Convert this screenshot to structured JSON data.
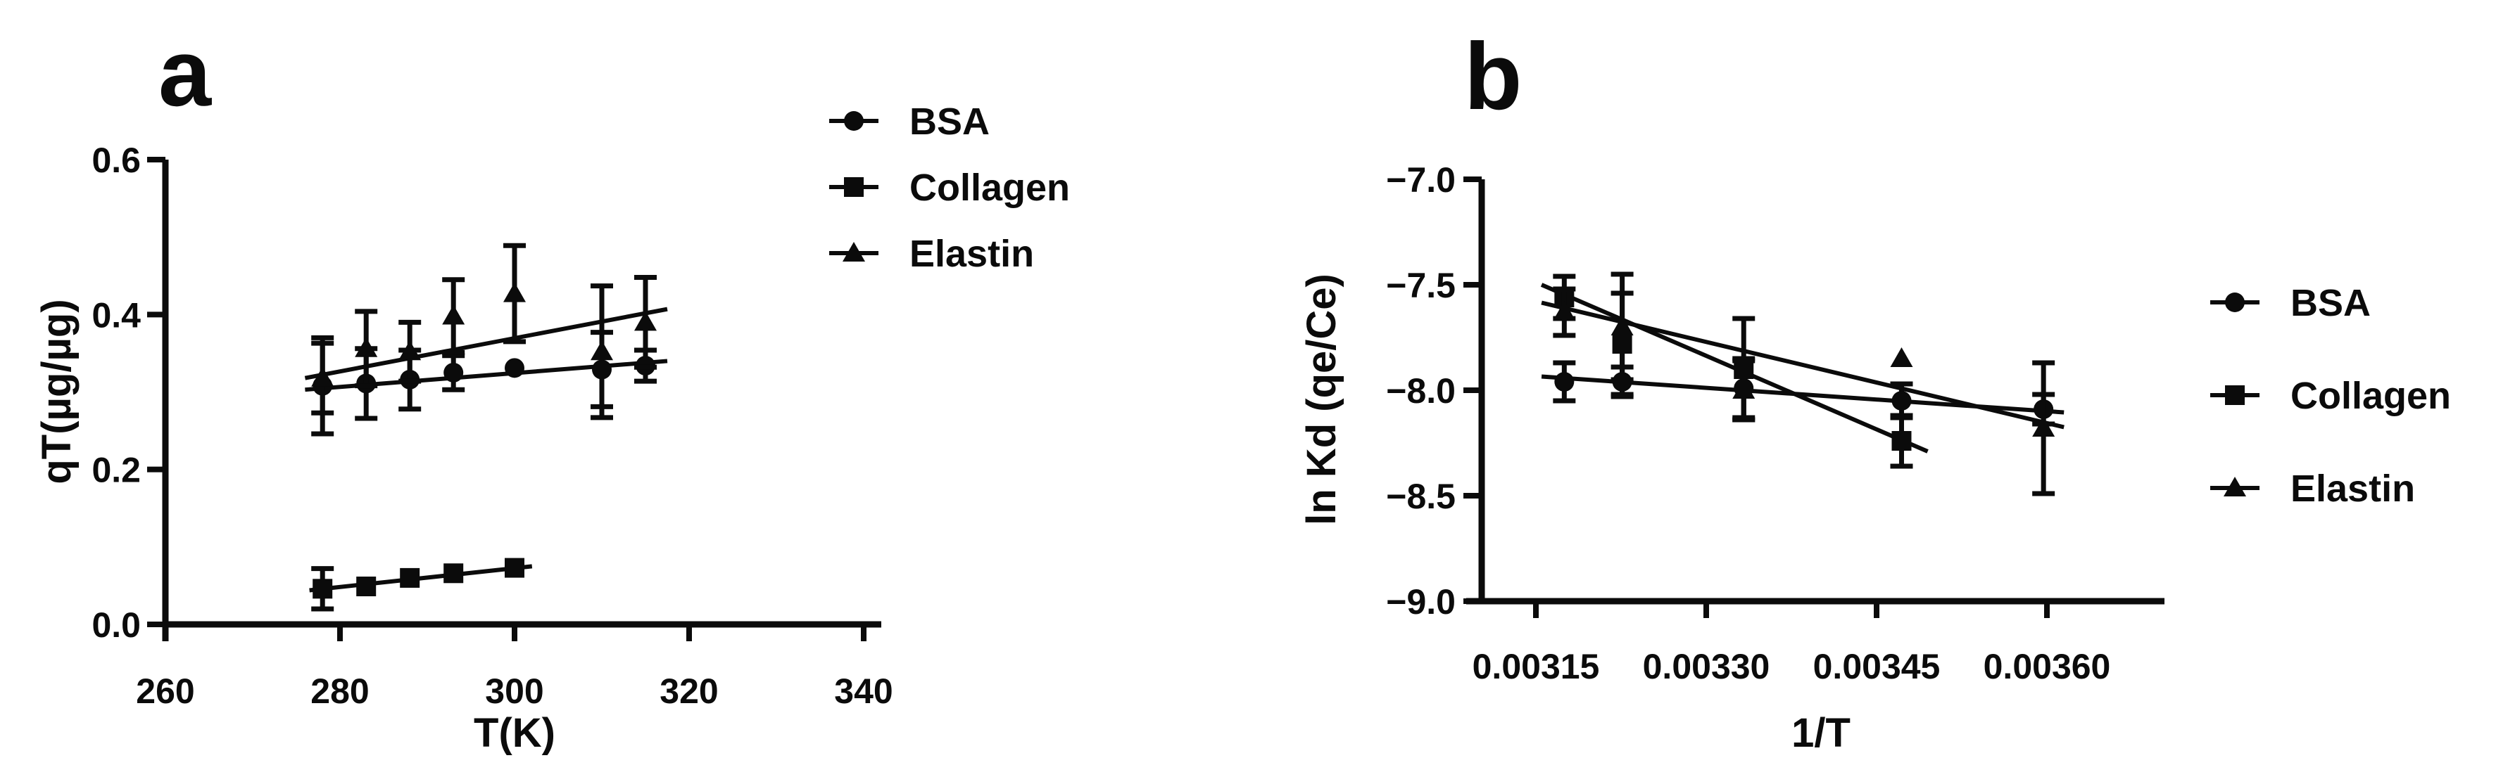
{
  "figure": {
    "background": "#ffffff",
    "ink": "#0b0b0b"
  },
  "legend": {
    "items": [
      {
        "label": "BSA",
        "marker": "circle"
      },
      {
        "label": "Collagen",
        "marker": "square"
      },
      {
        "label": "Elastin",
        "marker": "triangle"
      }
    ]
  },
  "chart_data": [
    {
      "id": "a",
      "panel_label": "a",
      "type": "scatter",
      "title": "",
      "xlabel": "T(K)",
      "ylabel": "qT(µg/µg)",
      "xlim": [
        260,
        342
      ],
      "ylim": [
        0.0,
        0.6
      ],
      "xticks": [
        260,
        280,
        300,
        320,
        340
      ],
      "xtick_labels": [
        "260",
        "280",
        "300",
        "320",
        "340"
      ],
      "yticks": [
        0.0,
        0.2,
        0.4,
        0.6
      ],
      "ytick_labels": [
        "0.0",
        "0.2",
        "0.4",
        "0.6"
      ],
      "grid": false,
      "legend_position": "right-top",
      "series": [
        {
          "name": "BSA",
          "marker": "circle",
          "x": [
            278,
            283,
            288,
            293,
            300,
            310,
            315
          ],
          "y": [
            0.308,
            0.311,
            0.316,
            0.325,
            0.331,
            0.329,
            0.334
          ],
          "yerr": [
            0.062,
            0.045,
            0.038,
            0.022,
            0,
            0.048,
            0.02
          ],
          "trend_line": {
            "x": [
              276,
              317.5
            ],
            "y": [
              0.303,
              0.34
            ]
          }
        },
        {
          "name": "Collagen",
          "marker": "square",
          "x": [
            278,
            283,
            288,
            293,
            300
          ],
          "y": [
            0.046,
            0.049,
            0.06,
            0.066,
            0.073
          ],
          "yerr": [
            0.026,
            0,
            0,
            0,
            0
          ],
          "trend_line": {
            "x": [
              276.5,
              302
            ],
            "y": [
              0.044,
              0.075
            ]
          }
        },
        {
          "name": "Elastin",
          "marker": "triangle",
          "x": [
            278,
            283,
            288,
            293,
            300,
            310,
            315
          ],
          "y": [
            0.318,
            0.356,
            0.352,
            0.398,
            0.427,
            0.352,
            0.39
          ],
          "yerr": [
            0.045,
            0.048,
            0.038,
            0.047,
            0.062,
            0.085,
            0.058
          ],
          "trend_line": {
            "x": [
              276,
              317.5
            ],
            "y": [
              0.318,
              0.407
            ]
          }
        }
      ]
    },
    {
      "id": "b",
      "panel_label": "b",
      "type": "scatter",
      "title": "",
      "xlabel": "1/T",
      "ylabel": "ln Kd (qe/Ce)",
      "xlim": [
        0.003095,
        0.003705
      ],
      "ylim": [
        -9.0,
        -7.0
      ],
      "xticks": [
        0.00315,
        0.0033,
        0.00345,
        0.0036
      ],
      "xtick_labels": [
        "0.00315",
        "0.00330",
        "0.00345",
        "0.00360"
      ],
      "yticks": [
        -7.0,
        -7.5,
        -8.0,
        -8.5,
        -9.0
      ],
      "ytick_labels": [
        "-7.0",
        "-7.5",
        "-8.0",
        "-8.5",
        "-9.0"
      ],
      "grid": false,
      "legend_position": "right-top",
      "series": [
        {
          "name": "BSA",
          "marker": "circle",
          "x": [
            0.003175,
            0.003226,
            0.003333,
            0.003472,
            0.003597
          ],
          "y": [
            -7.96,
            -7.96,
            -7.99,
            -8.05,
            -8.09
          ],
          "yerr": [
            0.09,
            0.07,
            0.14,
            0.08,
            0.07
          ],
          "trend_line": {
            "x": [
              0.003155,
              0.003615
            ],
            "y": [
              -7.935,
              -8.105
            ]
          }
        },
        {
          "name": "Collagen",
          "marker": "square",
          "x": [
            0.003175,
            0.003226,
            0.003333,
            0.003472
          ],
          "y": [
            -7.56,
            -7.78,
            -7.9,
            -8.24
          ],
          "yerr": [
            0.1,
            0.24,
            0.24,
            0.12
          ],
          "trend_line": {
            "x": [
              0.003155,
              0.003495
            ],
            "y": [
              -7.5,
              -8.29
            ]
          }
        },
        {
          "name": "Elastin",
          "marker": "triangle",
          "x": [
            0.003175,
            0.003226,
            0.003333,
            0.003472,
            0.003597
          ],
          "y": [
            -7.63,
            -7.7,
            -8.0,
            -7.85,
            -8.18
          ],
          "yerr": [
            0.11,
            0.25,
            0.14,
            0,
            0.31
          ],
          "trend_line": {
            "x": [
              0.003155,
              0.003615
            ],
            "y": [
              -7.585,
              -8.175
            ]
          }
        }
      ]
    }
  ]
}
